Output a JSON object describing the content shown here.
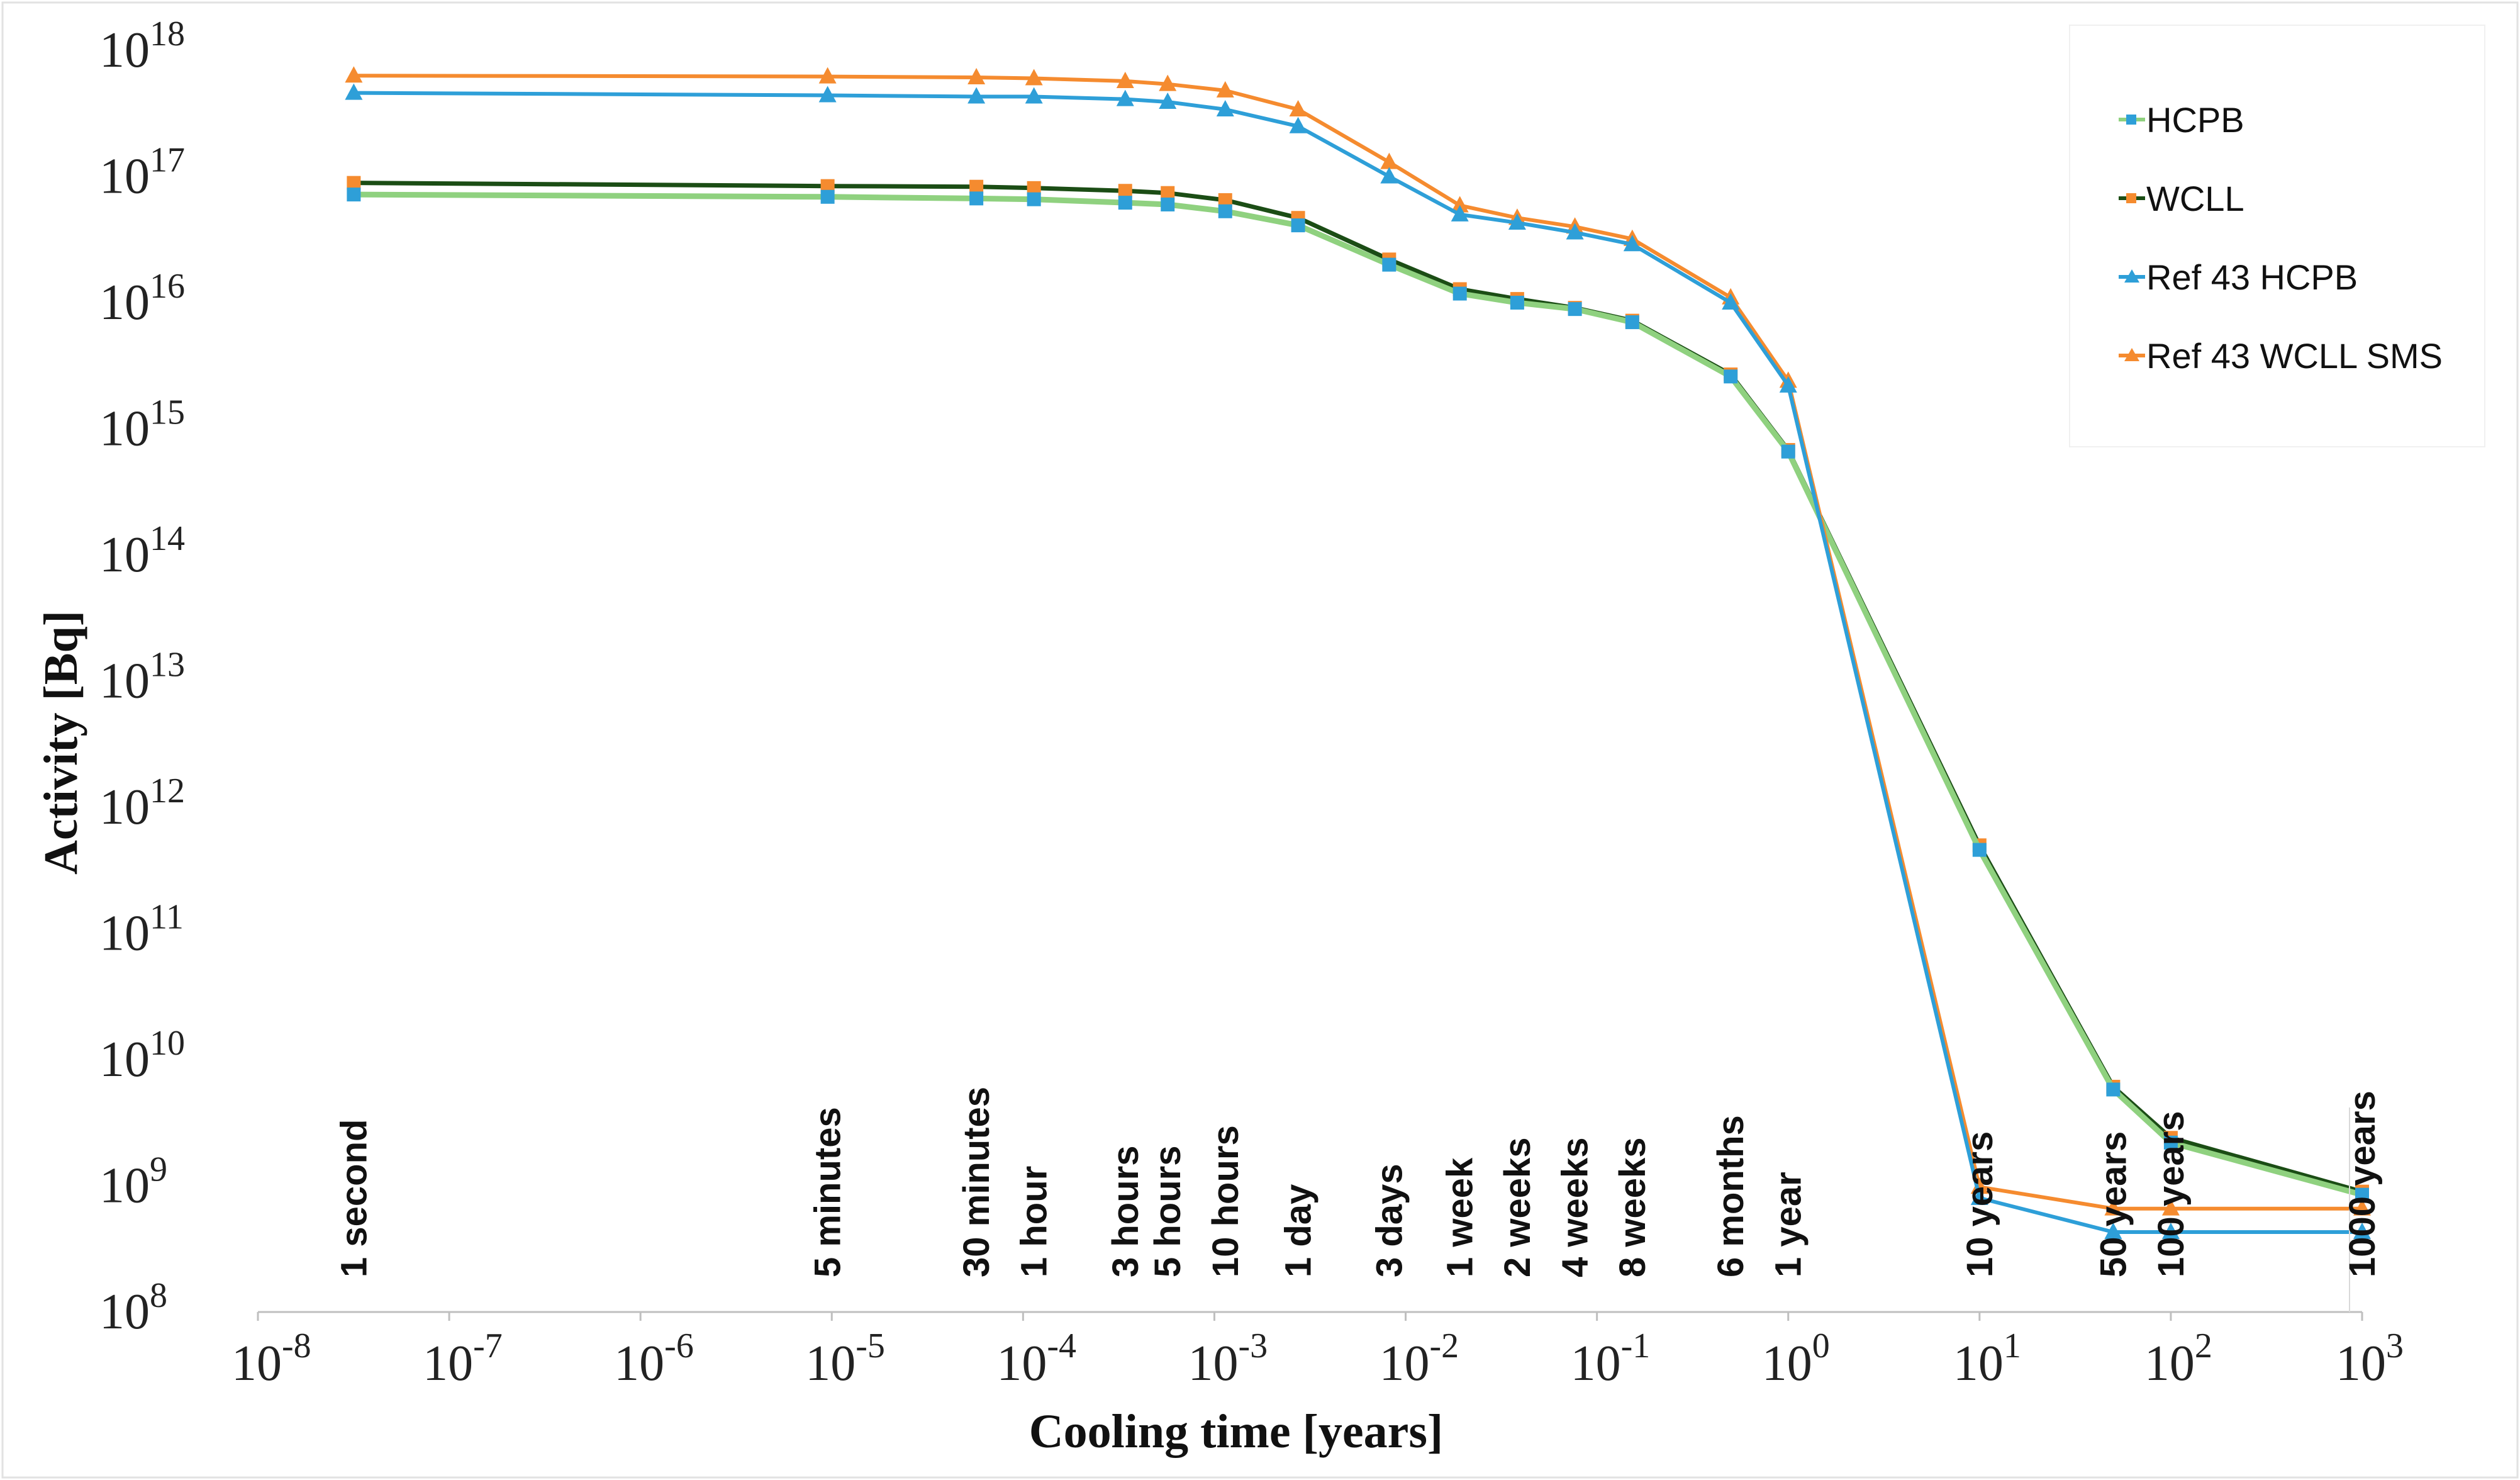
{
  "chart_data": {
    "type": "line",
    "xscale": "log",
    "yscale": "log",
    "xlabel": "Cooling time [years]",
    "ylabel": "Activity [Bq]",
    "xlim": [
      1e-08,
      1000
    ],
    "ylim": [
      100000000.0,
      1e+18
    ],
    "y_ticks": [
      {
        "base": "10",
        "exp": "8",
        "value": 100000000.0
      },
      {
        "base": "10",
        "exp": "9",
        "value": 1000000000.0
      },
      {
        "base": "10",
        "exp": "10",
        "value": 10000000000.0
      },
      {
        "base": "10",
        "exp": "11",
        "value": 100000000000.0
      },
      {
        "base": "10",
        "exp": "12",
        "value": 1000000000000.0
      },
      {
        "base": "10",
        "exp": "13",
        "value": 10000000000000.0
      },
      {
        "base": "10",
        "exp": "14",
        "value": 100000000000000.0
      },
      {
        "base": "10",
        "exp": "15",
        "value": 1000000000000000.0
      },
      {
        "base": "10",
        "exp": "16",
        "value": 1e+16
      },
      {
        "base": "10",
        "exp": "17",
        "value": 1e+17
      },
      {
        "base": "10",
        "exp": "18",
        "value": 1e+18
      }
    ],
    "x_ticks": [
      {
        "base": "10",
        "exp": "-8",
        "value": 1e-08
      },
      {
        "base": "10",
        "exp": "-7",
        "value": 1e-07
      },
      {
        "base": "10",
        "exp": "-6",
        "value": 1e-06
      },
      {
        "base": "10",
        "exp": "-5",
        "value": 1e-05
      },
      {
        "base": "10",
        "exp": "-4",
        "value": 0.0001
      },
      {
        "base": "10",
        "exp": "-3",
        "value": 0.001
      },
      {
        "base": "10",
        "exp": "-2",
        "value": 0.01
      },
      {
        "base": "10",
        "exp": "-1",
        "value": 0.1
      },
      {
        "base": "10",
        "exp": "0",
        "value": 1
      },
      {
        "base": "10",
        "exp": "1",
        "value": 10
      },
      {
        "base": "10",
        "exp": "2",
        "value": 100
      },
      {
        "base": "10",
        "exp": "3",
        "value": 1000
      }
    ],
    "time_annotations": [
      {
        "label": "1 second",
        "x": 3.17e-08
      },
      {
        "label": "5 minutes",
        "x": 9.51e-06
      },
      {
        "label": "30 minutes",
        "x": 5.7e-05
      },
      {
        "label": "1 hour",
        "x": 0.000114
      },
      {
        "label": "3 hours",
        "x": 0.000342
      },
      {
        "label": "5 hours",
        "x": 0.00057
      },
      {
        "label": "10 hours",
        "x": 0.00114
      },
      {
        "label": "1 day",
        "x": 0.00274
      },
      {
        "label": "3 days",
        "x": 0.0082
      },
      {
        "label": "1 week",
        "x": 0.0192
      },
      {
        "label": "2 weeks",
        "x": 0.0383
      },
      {
        "label": "4 weeks",
        "x": 0.0767
      },
      {
        "label": "8 weeks",
        "x": 0.153
      },
      {
        "label": "6 months",
        "x": 0.5
      },
      {
        "label": "1 year",
        "x": 1
      },
      {
        "label": "10 years",
        "x": 10
      },
      {
        "label": "50 years",
        "x": 50
      },
      {
        "label": "100 years",
        "x": 100
      },
      {
        "label": "1000 years",
        "x": 1000
      }
    ],
    "x": [
      3.17e-08,
      9.51e-06,
      5.7e-05,
      0.000114,
      0.000342,
      0.00057,
      0.00114,
      0.00274,
      0.0082,
      0.0192,
      0.0383,
      0.0767,
      0.153,
      0.5,
      1,
      10,
      50,
      100,
      1000
    ],
    "series": [
      {
        "name": "HCPB",
        "color": "#2e9fd8",
        "line_color": "#8fd17f",
        "marker": "square",
        "values": [
          7.2e+16,
          6.9e+16,
          6.7e+16,
          6.6e+16,
          6.2e+16,
          6e+16,
          5.3e+16,
          4.1e+16,
          2e+16,
          1.18e+16,
          1e+16,
          8900000000000000.0,
          7000000000000000.0,
          2600000000000000.0,
          660000000000000.0,
          460000000000.0,
          5800000000.0,
          2200000000.0,
          850000000.0
        ]
      },
      {
        "name": "WCLL",
        "color": "#f58b2f",
        "line_color": "#1b4d15",
        "marker": "square",
        "values": [
          8.9e+16,
          8.4e+16,
          8.3e+16,
          8.1e+16,
          7.7e+16,
          7.4e+16,
          6.5e+16,
          4.7e+16,
          2.2e+16,
          1.28e+16,
          1.07e+16,
          9100000000000000.0,
          7200000000000000.0,
          2700000000000000.0,
          680000000000000.0,
          500000000000.0,
          6100000000.0,
          2400000000.0,
          900000000.0
        ]
      },
      {
        "name": "Ref 43 HCPB",
        "color": "#2e9fd8",
        "line_color": "#2e9fd8",
        "marker": "triangle",
        "values": [
          4.6e+17,
          4.4e+17,
          4.3e+17,
          4.3e+17,
          4.1e+17,
          3.9e+17,
          3.4e+17,
          2.5e+17,
          1e+17,
          5e+16,
          4.3e+16,
          3.6e+16,
          2.9e+16,
          1e+16,
          2200000000000000.0,
          800000000.0,
          430000000.0,
          430000000.0,
          430000000.0
        ]
      },
      {
        "name": "Ref 43 WCLL SMS",
        "color": "#f58b2f",
        "line_color": "#f58b2f",
        "marker": "triangle",
        "values": [
          6.3e+17,
          6.2e+17,
          6.1e+17,
          6e+17,
          5.7e+17,
          5.4e+17,
          4.8e+17,
          3.4e+17,
          1.3e+17,
          5.9e+16,
          4.7e+16,
          4e+16,
          3.2e+16,
          1.1e+16,
          2400000000000000.0,
          980000000.0,
          660000000.0,
          660000000.0,
          660000000.0
        ]
      }
    ],
    "legend": {
      "position": "top-right"
    },
    "grid": false
  }
}
